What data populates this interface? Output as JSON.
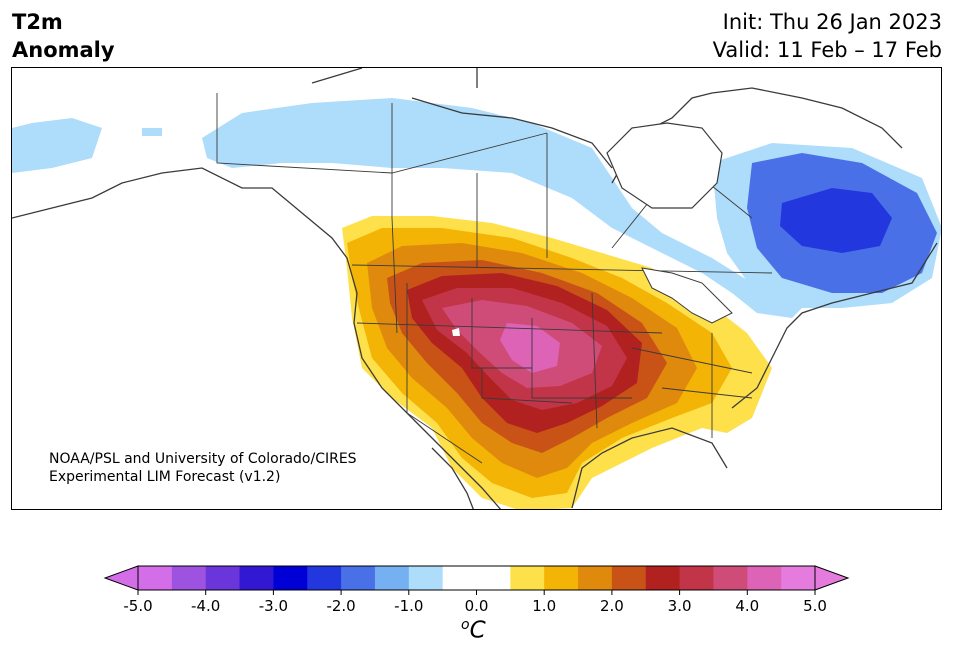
{
  "header": {
    "variable": "T2m",
    "metric": "Anomaly",
    "init": "Init: Thu 26 Jan 2023",
    "valid": "Valid: 11 Feb – 17 Feb"
  },
  "map": {
    "region": "North America",
    "projection": "Lambert conformal",
    "credit_line1": "NOAA/PSL and University of Colorado/CIRES",
    "credit_line2": "Experimental LIM Forecast (v1.2)",
    "anomalies": [
      {
        "region": "central United States (Great Plains)",
        "level_C": 4.0
      },
      {
        "region": "western & central United States",
        "level_C": 3.0
      },
      {
        "region": "eastern Canada / Quebec",
        "level_C": -2.0
      },
      {
        "region": "western Canada / Alaska",
        "level_C": -1.0
      }
    ]
  },
  "colorbar": {
    "unit_label": "C",
    "unit_prefix": "o",
    "ticks": [
      "-5.0",
      "-4.0",
      "-3.0",
      "-2.0",
      "-1.0",
      "0.0",
      "1.0",
      "2.0",
      "3.0",
      "4.0",
      "5.0"
    ],
    "colors": [
      "#d46ee8",
      "#9e52e0",
      "#6b35dc",
      "#3218d2",
      "#0000d6",
      "#2237de",
      "#4a70e8",
      "#75b0f2",
      "#aedcfb",
      "#ffffff",
      "#ffffff",
      "#fee04b",
      "#f3b406",
      "#df8a0c",
      "#c95316",
      "#b1211f",
      "#c23548",
      "#d04c78",
      "#dc63b6",
      "#e47bdd"
    ],
    "low_extend_color": "#d46ee8",
    "high_extend_color": "#e47bdd"
  }
}
